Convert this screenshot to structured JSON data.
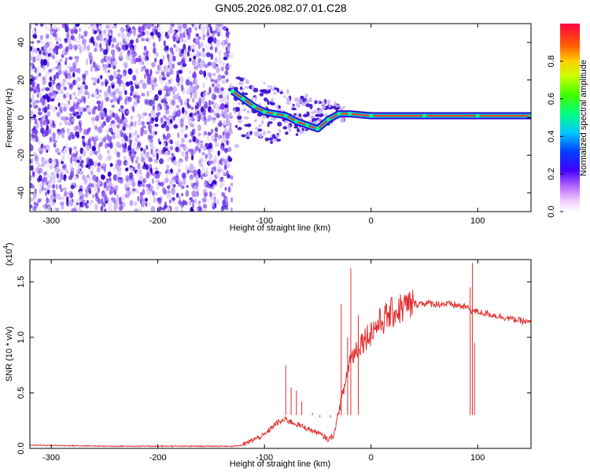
{
  "title": "GN05.2026.082.07.01.C28",
  "colors": {
    "snr_line": "#e03030",
    "spec_dark": "#3300cc",
    "spec_light": "#c9b3f5",
    "spec_mid": "#7a3ff0"
  },
  "chart_data": [
    {
      "type": "heatmap",
      "xlabel": "Height of straight line (km)",
      "ylabel": "Frequency (Hz)",
      "xlim": [
        -320,
        150
      ],
      "ylim": [
        -50,
        50
      ],
      "xticks": [
        -300,
        -200,
        -100,
        0,
        100
      ],
      "yticks": [
        -40,
        -20,
        0,
        20,
        40
      ],
      "noise_region_x": [
        -320,
        -135
      ],
      "signal_trace": [
        {
          "x": -130,
          "y": 14
        },
        {
          "x": -120,
          "y": 10
        },
        {
          "x": -110,
          "y": 6
        },
        {
          "x": -100,
          "y": 3
        },
        {
          "x": -90,
          "y": 2
        },
        {
          "x": -80,
          "y": 1
        },
        {
          "x": -70,
          "y": -2
        },
        {
          "x": -60,
          "y": -4
        },
        {
          "x": -50,
          "y": -6
        },
        {
          "x": -40,
          "y": -1
        },
        {
          "x": -30,
          "y": 2
        },
        {
          "x": -20,
          "y": 2
        },
        {
          "x": 0,
          "y": 1
        },
        {
          "x": 50,
          "y": 1
        },
        {
          "x": 100,
          "y": 1
        },
        {
          "x": 150,
          "y": 1
        }
      ],
      "colorbar": {
        "label": "Normalized spectral amplitude",
        "range": [
          0.0,
          1.0
        ],
        "ticks": [
          "0.0",
          "0.2",
          "0.4",
          "0.6",
          "0.8"
        ]
      }
    },
    {
      "type": "line",
      "xlabel": "Height of straight line (km)",
      "ylabel": "SNR (10 * v/v)",
      "exponent_label": "(x10",
      "exponent_power": "4",
      "exponent_close": ")",
      "xlim": [
        -320,
        150
      ],
      "ylim": [
        0,
        1.7
      ],
      "xticks": [
        -300,
        -200,
        -100,
        0,
        100
      ],
      "yticks": [
        "0.0",
        "0.5",
        "1.0",
        "1.5"
      ],
      "series": [
        {
          "name": "SNR",
          "x": [
            -320,
            -250,
            -200,
            -150,
            -130,
            -120,
            -110,
            -100,
            -90,
            -80,
            -70,
            -60,
            -50,
            -40,
            -35,
            -30,
            -25,
            -20,
            -10,
            0,
            10,
            20,
            30,
            40,
            50,
            60,
            70,
            80,
            90,
            95,
            100,
            110,
            120,
            130,
            140,
            150
          ],
          "y": [
            0.03,
            0.02,
            0.02,
            0.02,
            0.02,
            0.03,
            0.08,
            0.12,
            0.22,
            0.26,
            0.22,
            0.18,
            0.14,
            0.08,
            0.12,
            0.35,
            0.55,
            0.8,
            0.95,
            1.05,
            1.15,
            1.22,
            1.27,
            1.3,
            1.31,
            1.3,
            1.3,
            1.29,
            1.27,
            1.24,
            1.23,
            1.21,
            1.19,
            1.17,
            1.15,
            1.13
          ]
        }
      ],
      "spikes": [
        {
          "x": -80,
          "y": 0.75
        },
        {
          "x": -75,
          "y": 0.55
        },
        {
          "x": -70,
          "y": 0.52
        },
        {
          "x": -65,
          "y": 0.42
        },
        {
          "x": -55,
          "y": 0.32
        },
        {
          "x": -48,
          "y": 0.28
        },
        {
          "x": -38,
          "y": 0.28
        },
        {
          "x": -28,
          "y": 1.3
        },
        {
          "x": -22,
          "y": 1.0
        },
        {
          "x": -19,
          "y": 1.62
        },
        {
          "x": -12,
          "y": 1.2
        },
        {
          "x": 95,
          "y": 1.67
        },
        {
          "x": 97,
          "y": 0.95
        },
        {
          "x": 93,
          "y": 1.45
        }
      ]
    }
  ]
}
